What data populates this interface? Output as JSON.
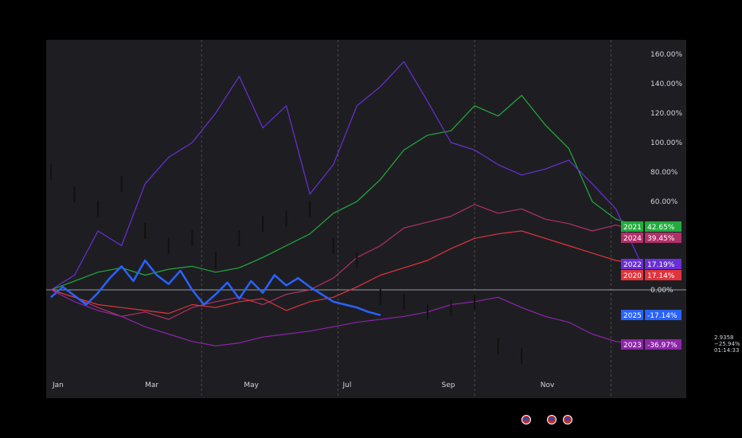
{
  "chart_data": {
    "type": "line",
    "title": "",
    "xlabel": "",
    "ylabel": "",
    "x_ticks": [
      "Jan",
      "Mar",
      "May",
      "Jul",
      "Sep",
      "Nov"
    ],
    "y_ticks": [
      "160.00%",
      "140.00%",
      "120.00%",
      "100.00%",
      "80.00%",
      "60.00%",
      "0.00%"
    ],
    "ylim": [
      -50,
      160
    ],
    "x_unit": "trading day of year (0-251)",
    "grid": "vertical dashed lines only",
    "series": [
      {
        "name": "2021",
        "color": "#22ab3c",
        "end_label": "42.65%",
        "x": [
          0,
          10,
          20,
          30,
          40,
          50,
          60,
          70,
          80,
          90,
          100,
          110,
          120,
          130,
          140,
          150,
          160,
          170,
          180,
          190,
          200,
          210,
          220,
          230,
          240,
          251
        ],
        "y": [
          0,
          6,
          12,
          15,
          10,
          14,
          16,
          12,
          15,
          22,
          30,
          38,
          52,
          60,
          75,
          95,
          105,
          108,
          125,
          118,
          132,
          112,
          96,
          60,
          48,
          42.65
        ]
      },
      {
        "name": "2024",
        "color": "#b0306a",
        "end_label": "39.45%",
        "x": [
          0,
          10,
          20,
          30,
          40,
          50,
          60,
          70,
          80,
          90,
          100,
          110,
          120,
          130,
          140,
          150,
          160,
          170,
          180,
          190,
          200,
          210,
          220,
          230,
          240,
          251
        ],
        "y": [
          0,
          -5,
          -12,
          -18,
          -15,
          -20,
          -12,
          -8,
          -5,
          -10,
          -3,
          0,
          8,
          22,
          30,
          42,
          46,
          50,
          58,
          52,
          55,
          48,
          45,
          40,
          44,
          39.45
        ]
      },
      {
        "name": "2022",
        "color": "#6a2fd6",
        "end_label": "17.19%",
        "x": [
          0,
          10,
          20,
          30,
          40,
          50,
          60,
          70,
          80,
          90,
          100,
          110,
          120,
          130,
          140,
          150,
          160,
          170,
          180,
          190,
          200,
          210,
          220,
          230,
          240,
          251
        ],
        "y": [
          0,
          10,
          40,
          30,
          72,
          90,
          100,
          120,
          145,
          110,
          125,
          65,
          85,
          125,
          138,
          155,
          128,
          100,
          95,
          85,
          78,
          82,
          88,
          72,
          55,
          17.19
        ]
      },
      {
        "name": "2020",
        "color": "#e0343c",
        "end_label": "17.14%",
        "x": [
          0,
          10,
          20,
          30,
          40,
          50,
          60,
          70,
          80,
          90,
          100,
          110,
          120,
          130,
          140,
          150,
          160,
          170,
          180,
          190,
          200,
          210,
          220,
          230,
          240,
          251
        ],
        "y": [
          0,
          -5,
          -10,
          -12,
          -14,
          -16,
          -10,
          -12,
          -8,
          -6,
          -14,
          -8,
          -5,
          2,
          10,
          15,
          20,
          28,
          35,
          38,
          40,
          35,
          30,
          25,
          20,
          17.14
        ]
      },
      {
        "name": "2025",
        "color": "#2962ff",
        "end_label": "-17.14%",
        "x": [
          0,
          5,
          10,
          15,
          20,
          25,
          30,
          35,
          40,
          45,
          50,
          55,
          60,
          65,
          70,
          75,
          80,
          85,
          90,
          95,
          100,
          105,
          110,
          115,
          120,
          125,
          130,
          135,
          140
        ],
        "y": [
          -5,
          2,
          -4,
          -10,
          -2,
          8,
          16,
          6,
          20,
          10,
          4,
          13,
          0,
          -10,
          -3,
          5,
          -6,
          6,
          -2,
          10,
          3,
          8,
          2,
          -3,
          -8,
          -10,
          -12,
          -15,
          -17.14
        ]
      },
      {
        "name": "2023",
        "color": "#8e24aa",
        "end_label": "-36.97%",
        "x": [
          0,
          10,
          20,
          30,
          40,
          50,
          60,
          70,
          80,
          90,
          100,
          110,
          120,
          130,
          140,
          150,
          160,
          170,
          180,
          190,
          200,
          210,
          220,
          230,
          240,
          251
        ],
        "y": [
          0,
          -8,
          -14,
          -18,
          -25,
          -30,
          -35,
          -38,
          -36,
          -32,
          -30,
          -28,
          -25,
          -22,
          -20,
          -18,
          -15,
          -10,
          -8,
          -5,
          -12,
          -18,
          -22,
          -30,
          -35,
          -36.97
        ]
      },
      {
        "name": "",
        "color": "#111111",
        "style": "bars",
        "x": [
          0,
          10,
          20,
          30,
          40,
          50,
          60,
          70,
          80,
          90,
          100,
          110,
          120,
          130,
          140,
          150,
          160,
          170,
          180,
          190,
          200
        ],
        "y": [
          80,
          65,
          55,
          72,
          40,
          30,
          35,
          20,
          35,
          45,
          48,
          55,
          30,
          20,
          -5,
          -8,
          -15,
          -12,
          -8,
          -38,
          -45
        ]
      }
    ]
  },
  "side_readout": {
    "price": "2.9358",
    "change": "−25.94%",
    "time": "01:14:33"
  }
}
